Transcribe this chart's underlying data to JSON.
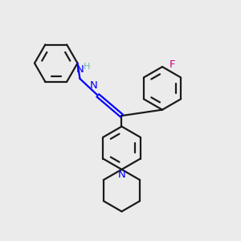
{
  "bg_color": "#ebebeb",
  "bond_color": "#1a1a1a",
  "N_color": "#0000ff",
  "F_color": "#cc007a",
  "H_color": "#7ab3b3",
  "line_width": 1.6,
  "figsize": [
    3.0,
    3.0
  ],
  "dpi": 100,
  "xlim": [
    0,
    10
  ],
  "ylim": [
    0,
    10
  ]
}
